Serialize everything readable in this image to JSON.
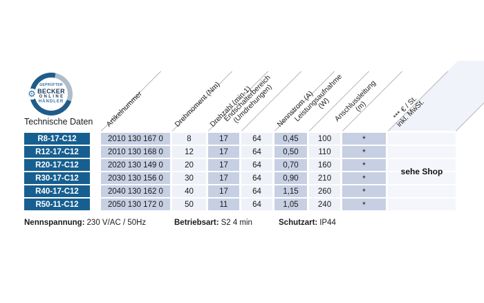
{
  "section_title": "Technische Daten",
  "badge": {
    "line1": "GEPRÜFTER",
    "line2": "BECKER",
    "line3": "ONLINE",
    "line4": "HÄNDLER",
    "gear_icon_glyph": "⚙"
  },
  "table": {
    "headers": {
      "artikelnummer": "Artikelnummer",
      "drehmoment": "Drehmoment (Nm)",
      "drehzahl": "Drehzahl (min-1)",
      "endschalterbereich_l1": "Endschalterbereich",
      "endschalterbereich_l2": "(Umdrehungen)",
      "nennstrom": "Nennstrom (A)",
      "leistungsaufnahme_l1": "Leistungsaufnahme",
      "leistungsaufnahme_l2": "(W)",
      "anschlussleitung_l1": "Anschlussleitung",
      "anschlussleitung_l2": "(m)",
      "preis_l1": "*** € / St.",
      "preis_l2": "inkl. MwSt."
    },
    "rows": [
      {
        "model": "R8-17-C12",
        "artikelnummer": "2010 130 167 0",
        "drehmoment": "8",
        "drehzahl": "17",
        "endschalterbereich": "64",
        "nennstrom": "0,45",
        "leistungsaufnahme": "100",
        "anschlussleitung": "*"
      },
      {
        "model": "R12-17-C12",
        "artikelnummer": "2010 130 168 0",
        "drehmoment": "12",
        "drehzahl": "17",
        "endschalterbereich": "64",
        "nennstrom": "0,50",
        "leistungsaufnahme": "110",
        "anschlussleitung": "*"
      },
      {
        "model": "R20-17-C12",
        "artikelnummer": "2020 130 149 0",
        "drehmoment": "20",
        "drehzahl": "17",
        "endschalterbereich": "64",
        "nennstrom": "0,70",
        "leistungsaufnahme": "160",
        "anschlussleitung": "*"
      },
      {
        "model": "R30-17-C12",
        "artikelnummer": "2030 130 156 0",
        "drehmoment": "30",
        "drehzahl": "17",
        "endschalterbereich": "64",
        "nennstrom": "0,90",
        "leistungsaufnahme": "210",
        "anschlussleitung": "*"
      },
      {
        "model": "R40-17-C12",
        "artikelnummer": "2040 130 162 0",
        "drehmoment": "40",
        "drehzahl": "17",
        "endschalterbereich": "64",
        "nennstrom": "1,15",
        "leistungsaufnahme": "260",
        "anschlussleitung": "*"
      },
      {
        "model": "R50-11-C12",
        "artikelnummer": "2050 130 172 0",
        "drehmoment": "50",
        "drehzahl": "11",
        "endschalterbereich": "64",
        "nennstrom": "1,05",
        "leistungsaufnahme": "240",
        "anschlussleitung": "*"
      }
    ],
    "price_note": "sehe Shop"
  },
  "footer": {
    "nennspannung_label": "Nennspannung:",
    "nennspannung_value": "230 V/AC / 50Hz",
    "betriebsart_label": "Betriebsart:",
    "betriebsart_value": "S2 4 min",
    "schutzart_label": "Schutzart:",
    "schutzart_value": "IP44"
  },
  "colors": {
    "row_label_bg": "#175f90",
    "cell_medium_bg": "#c7cfe3",
    "cell_light_bg": "#eef1f7",
    "price_col_bg": "#f4f6fb",
    "badge_ring_dark": "#1f5c8a",
    "badge_ring_light": "#aebdc9",
    "badge_text_blue": "#2f6da3",
    "badge_text_navy": "#16365a"
  }
}
